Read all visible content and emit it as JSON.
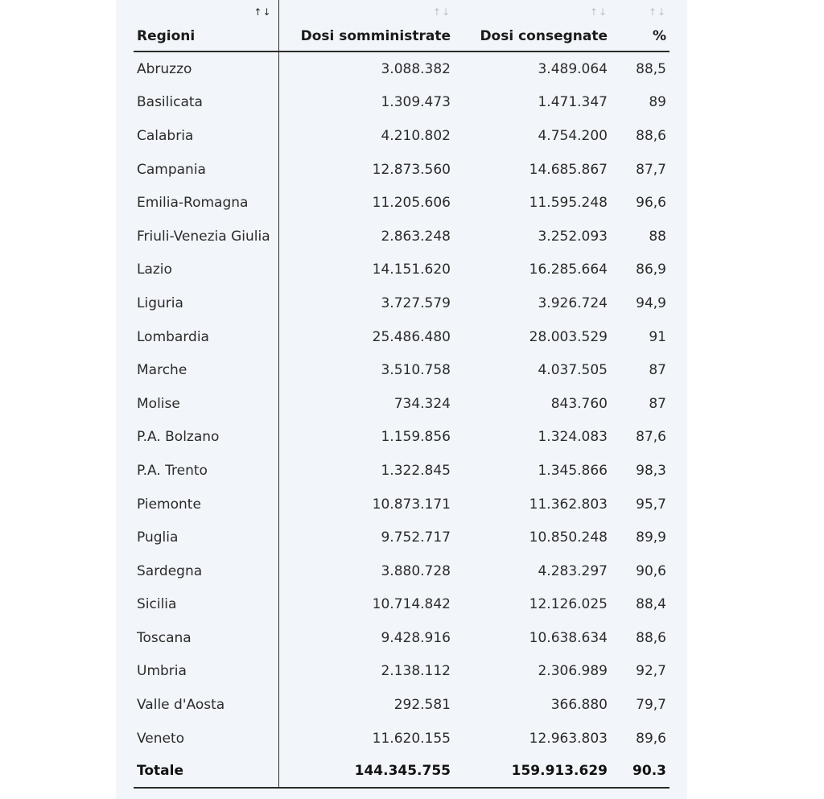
{
  "table": {
    "headers": {
      "region": "Regioni",
      "administered": "Dosi somministrate",
      "delivered": "Dosi consegnate",
      "percent": "%"
    },
    "sort_glyph": "↑↓",
    "rows": [
      {
        "region": "Abruzzo",
        "administered": "3.088.382",
        "delivered": "3.489.064",
        "percent": "88,5"
      },
      {
        "region": "Basilicata",
        "administered": "1.309.473",
        "delivered": "1.471.347",
        "percent": "89"
      },
      {
        "region": "Calabria",
        "administered": "4.210.802",
        "delivered": "4.754.200",
        "percent": "88,6"
      },
      {
        "region": "Campania",
        "administered": "12.873.560",
        "delivered": "14.685.867",
        "percent": "87,7"
      },
      {
        "region": "Emilia-Romagna",
        "administered": "11.205.606",
        "delivered": "11.595.248",
        "percent": "96,6"
      },
      {
        "region": "Friuli-Venezia Giulia",
        "administered": "2.863.248",
        "delivered": "3.252.093",
        "percent": "88"
      },
      {
        "region": "Lazio",
        "administered": "14.151.620",
        "delivered": "16.285.664",
        "percent": "86,9"
      },
      {
        "region": "Liguria",
        "administered": "3.727.579",
        "delivered": "3.926.724",
        "percent": "94,9"
      },
      {
        "region": "Lombardia",
        "administered": "25.486.480",
        "delivered": "28.003.529",
        "percent": "91"
      },
      {
        "region": "Marche",
        "administered": "3.510.758",
        "delivered": "4.037.505",
        "percent": "87"
      },
      {
        "region": "Molise",
        "administered": "734.324",
        "delivered": "843.760",
        "percent": "87"
      },
      {
        "region": "P.A. Bolzano",
        "administered": "1.159.856",
        "delivered": "1.324.083",
        "percent": "87,6"
      },
      {
        "region": "P.A. Trento",
        "administered": "1.322.845",
        "delivered": "1.345.866",
        "percent": "98,3"
      },
      {
        "region": "Piemonte",
        "administered": "10.873.171",
        "delivered": "11.362.803",
        "percent": "95,7"
      },
      {
        "region": "Puglia",
        "administered": "9.752.717",
        "delivered": "10.850.248",
        "percent": "89,9"
      },
      {
        "region": "Sardegna",
        "administered": "3.880.728",
        "delivered": "4.283.297",
        "percent": "90,6"
      },
      {
        "region": "Sicilia",
        "administered": "10.714.842",
        "delivered": "12.126.025",
        "percent": "88,4"
      },
      {
        "region": "Toscana",
        "administered": "9.428.916",
        "delivered": "10.638.634",
        "percent": "88,6"
      },
      {
        "region": "Umbria",
        "administered": "2.138.112",
        "delivered": "2.306.989",
        "percent": "92,7"
      },
      {
        "region": "Valle d'Aosta",
        "administered": "292.581",
        "delivered": "366.880",
        "percent": "79,7"
      },
      {
        "region": "Veneto",
        "administered": "11.620.155",
        "delivered": "12.963.803",
        "percent": "89,6"
      }
    ],
    "total": {
      "label": "Totale",
      "administered": "144.345.755",
      "delivered": "159.913.629",
      "percent": "90.3"
    }
  }
}
